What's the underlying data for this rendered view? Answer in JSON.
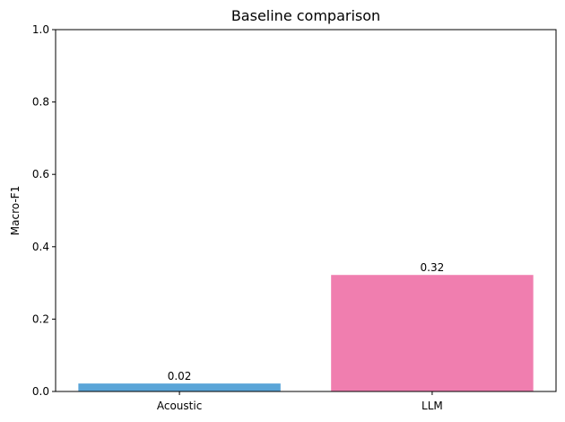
{
  "chart_data": {
    "type": "bar",
    "title": "Baseline comparison",
    "xlabel": "",
    "ylabel": "Macro-F1",
    "categories": [
      "Acoustic",
      "LLM"
    ],
    "values": [
      0.022,
      0.322
    ],
    "value_labels": [
      "0.02",
      "0.32"
    ],
    "colors": [
      "#5aa5d8",
      "#f07eaf"
    ],
    "ylim": [
      0,
      1.0
    ],
    "yticks": [
      0.0,
      0.2,
      0.4,
      0.6,
      0.8,
      1.0
    ],
    "ytick_labels": [
      "0.0",
      "0.2",
      "0.4",
      "0.6",
      "0.8",
      "1.0"
    ],
    "grid": false,
    "legend": false
  }
}
